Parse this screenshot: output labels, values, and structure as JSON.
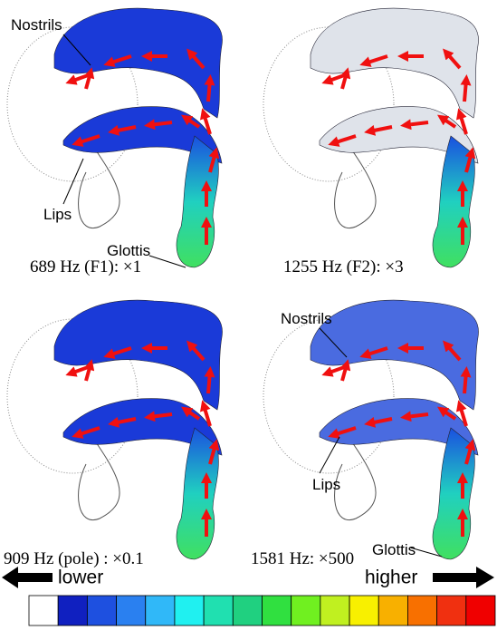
{
  "panels": [
    {
      "caption": "689 Hz (F1): ×1",
      "labels": [
        "Nostrils",
        "Lips",
        "Glottis"
      ]
    },
    {
      "caption": "1255 Hz (F2): ×3"
    },
    {
      "caption": "909 Hz (pole) : ×0.1"
    },
    {
      "caption": "1581 Hz: ×500",
      "labels": [
        "Nostrils",
        "Lips",
        "Glottis"
      ]
    }
  ],
  "legend": {
    "low": "lower",
    "high": "higher"
  }
}
